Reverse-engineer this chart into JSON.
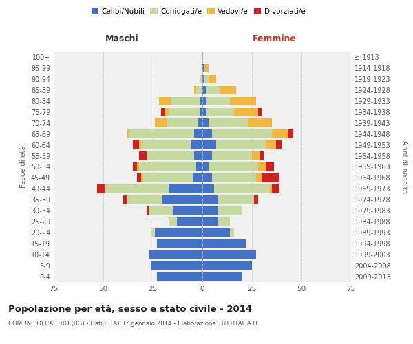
{
  "age_groups": [
    "0-4",
    "5-9",
    "10-14",
    "15-19",
    "20-24",
    "25-29",
    "30-34",
    "35-39",
    "40-44",
    "45-49",
    "50-54",
    "55-59",
    "60-64",
    "65-69",
    "70-74",
    "75-79",
    "80-84",
    "85-89",
    "90-94",
    "95-99",
    "100+"
  ],
  "birth_years": [
    "2009-2013",
    "2004-2008",
    "1999-2003",
    "1994-1998",
    "1989-1993",
    "1984-1988",
    "1979-1983",
    "1974-1978",
    "1969-1973",
    "1964-1968",
    "1959-1963",
    "1954-1958",
    "1949-1953",
    "1944-1948",
    "1939-1943",
    "1934-1938",
    "1929-1933",
    "1924-1928",
    "1919-1923",
    "1914-1918",
    "≤ 1913"
  ],
  "colors": {
    "celibi": "#4472C4",
    "coniugati": "#c5d9a0",
    "vedovi": "#f0b840",
    "divorziati": "#cc2222"
  },
  "males": {
    "celibi": [
      23,
      26,
      27,
      23,
      24,
      13,
      15,
      20,
      17,
      5,
      3,
      4,
      6,
      4,
      2,
      1,
      1,
      0,
      0,
      0,
      0
    ],
    "coniugati": [
      0,
      0,
      0,
      0,
      2,
      4,
      12,
      18,
      32,
      25,
      29,
      24,
      25,
      33,
      16,
      16,
      15,
      3,
      1,
      0,
      0
    ],
    "vedovi": [
      0,
      0,
      0,
      0,
      0,
      0,
      0,
      0,
      0,
      1,
      1,
      0,
      1,
      1,
      6,
      2,
      6,
      1,
      0,
      0,
      0
    ],
    "divorziati": [
      0,
      0,
      0,
      0,
      0,
      0,
      1,
      2,
      4,
      2,
      2,
      4,
      3,
      0,
      0,
      2,
      0,
      0,
      0,
      0,
      0
    ]
  },
  "females": {
    "celibi": [
      20,
      25,
      27,
      22,
      14,
      8,
      8,
      8,
      6,
      5,
      3,
      5,
      7,
      5,
      3,
      2,
      2,
      2,
      1,
      1,
      0
    ],
    "coniugati": [
      0,
      0,
      0,
      0,
      2,
      6,
      12,
      18,
      28,
      22,
      25,
      20,
      25,
      30,
      20,
      14,
      12,
      7,
      2,
      0,
      0
    ],
    "vedovi": [
      0,
      0,
      0,
      0,
      0,
      0,
      0,
      0,
      1,
      3,
      4,
      4,
      5,
      8,
      12,
      12,
      13,
      8,
      4,
      2,
      0
    ],
    "divorziati": [
      0,
      0,
      0,
      0,
      0,
      0,
      0,
      2,
      4,
      9,
      4,
      2,
      3,
      3,
      0,
      2,
      0,
      0,
      0,
      0,
      0
    ]
  },
  "xlim": 75,
  "title": "Popolazione per età, sesso e stato civile - 2014",
  "subtitle": "COMUNE DI CASTRO (BG) - Dati ISTAT 1° gennaio 2014 - Elaborazione TUTTITALIA.IT",
  "xlabel_left": "Maschi",
  "xlabel_right": "Femmine",
  "ylabel_left": "Fasce di età",
  "ylabel_right": "Anni di nascita",
  "legend_labels": [
    "Celibi/Nubili",
    "Coniugati/e",
    "Vedovi/e",
    "Divorziati/e"
  ],
  "bg_color": "#f0f0f0"
}
